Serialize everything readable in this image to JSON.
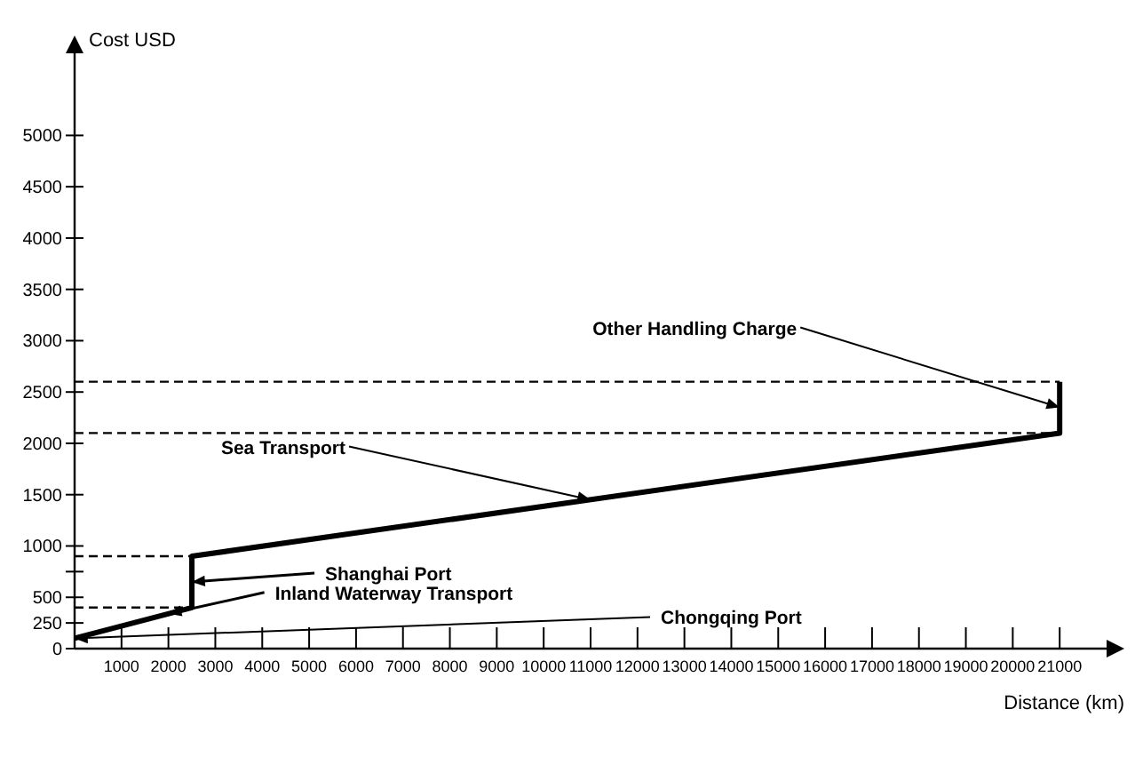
{
  "chart_data": {
    "type": "line",
    "xlabel": "Distance (km)",
    "ylabel": "Cost USD",
    "x": [
      0,
      2500,
      2500,
      21000,
      21000
    ],
    "values": [
      100,
      400,
      900,
      2100,
      2600
    ],
    "color": "#000000",
    "line_style": "solid",
    "xlim": [
      0,
      22000
    ],
    "ylim": [
      0,
      5800
    ],
    "xticks": [
      1000,
      2000,
      3000,
      4000,
      5000,
      6000,
      7000,
      8000,
      9000,
      10000,
      11000,
      12000,
      13000,
      14000,
      15000,
      16000,
      17000,
      18000,
      19000,
      20000,
      21000
    ],
    "yticks": [
      0,
      250,
      500,
      {
        "value": 750,
        "label": null
      },
      1000,
      1500,
      2000,
      2500,
      3000,
      3500,
      4000,
      4500,
      5000
    ],
    "ref_lines": [
      {
        "axis": "y",
        "value": 400,
        "color": "#000000",
        "line_style": "dashed"
      },
      {
        "axis": "y",
        "value": 900,
        "color": "#000000",
        "line_style": "dashed"
      },
      {
        "axis": "y",
        "value": 2100,
        "color": "#000000",
        "line_style": "dashed"
      },
      {
        "axis": "y",
        "value": 2600,
        "color": "#000000",
        "line_style": "dashed"
      }
    ],
    "annotations": [
      {
        "text": "Other Handling Charge",
        "x": 21000,
        "y": 2350
      },
      {
        "text": "Sea Transport",
        "x": 11000,
        "y": 1450
      },
      {
        "text": "Shanghai Port",
        "x": 2500,
        "y": 650
      },
      {
        "text": "Inland Waterway Transport",
        "x": 2000,
        "y": 340
      },
      {
        "text": "Chongqing Port",
        "x": 0,
        "y": 100
      }
    ]
  }
}
